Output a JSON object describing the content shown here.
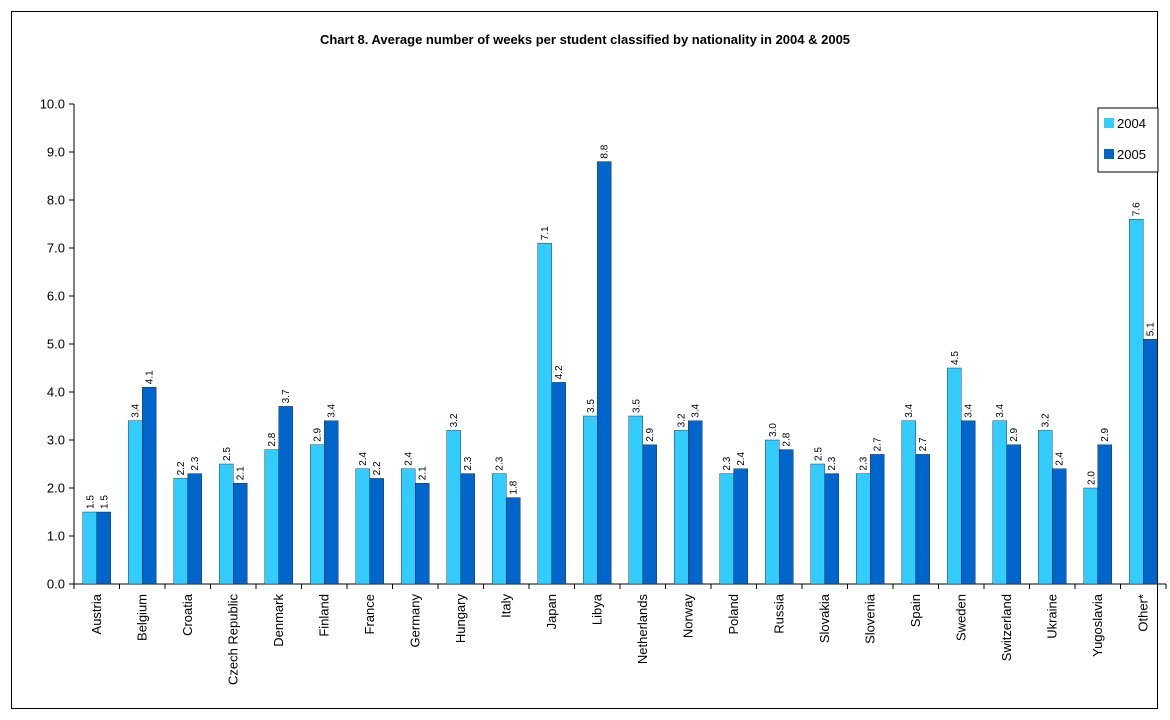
{
  "chart_data": {
    "type": "bar",
    "title": "Chart 8. Average number of weeks per student classified by nationality in 2004 & 2005",
    "categories": [
      "Austria",
      "Belgium",
      "Croatia",
      "Czech Republic",
      "Denmark",
      "Finland",
      "France",
      "Germany",
      "Hungary",
      "Italy",
      "Japan",
      "Libya",
      "Netherlands",
      "Norway",
      "Poland",
      "Russia",
      "Slovakia",
      "Slovenia",
      "Spain",
      "Sweden",
      "Switzerland",
      "Ukraine",
      "Yugoslavia",
      "Other*"
    ],
    "series": [
      {
        "name": "2004",
        "color": "#33CCFF",
        "values": [
          1.5,
          3.4,
          2.2,
          2.5,
          2.8,
          2.9,
          2.4,
          2.4,
          3.2,
          2.3,
          7.1,
          3.5,
          3.5,
          3.2,
          2.3,
          3.0,
          2.5,
          2.3,
          3.4,
          4.5,
          3.4,
          3.2,
          2.0,
          7.6
        ]
      },
      {
        "name": "2005",
        "color": "#0066CC",
        "values": [
          1.5,
          4.1,
          2.3,
          2.1,
          3.7,
          3.4,
          2.2,
          2.1,
          2.3,
          1.8,
          4.2,
          8.8,
          2.9,
          3.4,
          2.4,
          2.8,
          2.3,
          2.7,
          2.7,
          3.4,
          2.9,
          2.4,
          2.9,
          5.1
        ]
      }
    ],
    "ylim": [
      0,
      10
    ],
    "yticks": [
      "0.0",
      "1.0",
      "2.0",
      "3.0",
      "4.0",
      "5.0",
      "6.0",
      "7.0",
      "8.0",
      "9.0",
      "10.0"
    ],
    "xlabel": "",
    "ylabel": "",
    "grid": false,
    "legend": "top-right"
  }
}
